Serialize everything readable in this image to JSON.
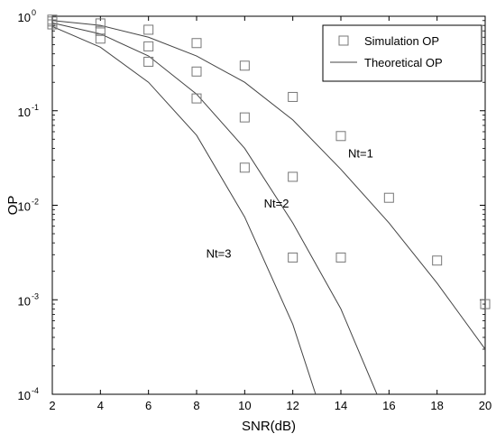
{
  "chart_data": {
    "type": "line",
    "title": "",
    "xlabel": "SNR(dB)",
    "ylabel": "OP",
    "xlim": [
      2,
      20
    ],
    "ylim": [
      0.0001,
      1
    ],
    "yscale": "log",
    "x_ticks": [
      2,
      4,
      6,
      8,
      10,
      12,
      14,
      16,
      18,
      20
    ],
    "y_ticks": [
      {
        "value": 1,
        "base": "10",
        "exp": "0"
      },
      {
        "value": 0.1,
        "base": "10",
        "exp": "-1"
      },
      {
        "value": 0.01,
        "base": "10",
        "exp": "-2"
      },
      {
        "value": 0.001,
        "base": "10",
        "exp": "-3"
      },
      {
        "value": 0.0001,
        "base": "10",
        "exp": "-4"
      }
    ],
    "grid": false,
    "legend": {
      "position": "top-right",
      "entries": [
        {
          "label": "Simulation OP",
          "marker": "square"
        },
        {
          "label": "Theoretical OP",
          "marker": "line"
        }
      ]
    },
    "series": [
      {
        "name": "Nt=1",
        "theoretical": {
          "x": [
            2,
            4,
            6,
            8,
            10,
            12,
            14,
            16,
            18,
            20
          ],
          "y": [
            0.9,
            0.8,
            0.6,
            0.38,
            0.2,
            0.08,
            0.024,
            0.0065,
            0.0015,
            0.0003
          ]
        },
        "simulation": {
          "x": [
            2,
            4,
            6,
            8,
            10,
            12,
            14,
            16,
            18,
            20
          ],
          "y": [
            0.92,
            0.84,
            0.72,
            0.52,
            0.3,
            0.14,
            0.054,
            0.012,
            0.0026,
            0.0009
          ]
        }
      },
      {
        "name": "Nt=2",
        "theoretical": {
          "x": [
            2,
            4,
            6,
            8,
            10,
            12,
            14,
            15.5
          ],
          "y": [
            0.85,
            0.65,
            0.38,
            0.15,
            0.04,
            0.0065,
            0.0008,
            0.0001
          ]
        },
        "simulation": {
          "x": [
            2,
            4,
            6,
            8,
            10,
            12,
            14
          ],
          "y": [
            0.88,
            0.7,
            0.48,
            0.26,
            0.085,
            0.02,
            0.0028
          ]
        }
      },
      {
        "name": "Nt=3",
        "theoretical": {
          "x": [
            2,
            4,
            6,
            8,
            10,
            12,
            12.95
          ],
          "y": [
            0.78,
            0.47,
            0.2,
            0.055,
            0.0075,
            0.00055,
            0.0001
          ]
        },
        "simulation": {
          "x": [
            2,
            4,
            6,
            8,
            10,
            12
          ],
          "y": [
            0.82,
            0.58,
            0.33,
            0.135,
            0.025,
            0.0028
          ]
        }
      }
    ],
    "annotations": [
      {
        "text": "Nt=1",
        "x": 14.3,
        "y": 0.032
      },
      {
        "text": "Nt=2",
        "x": 10.8,
        "y": 0.0095
      },
      {
        "text": "Nt=3",
        "x": 8.4,
        "y": 0.0028
      }
    ]
  }
}
